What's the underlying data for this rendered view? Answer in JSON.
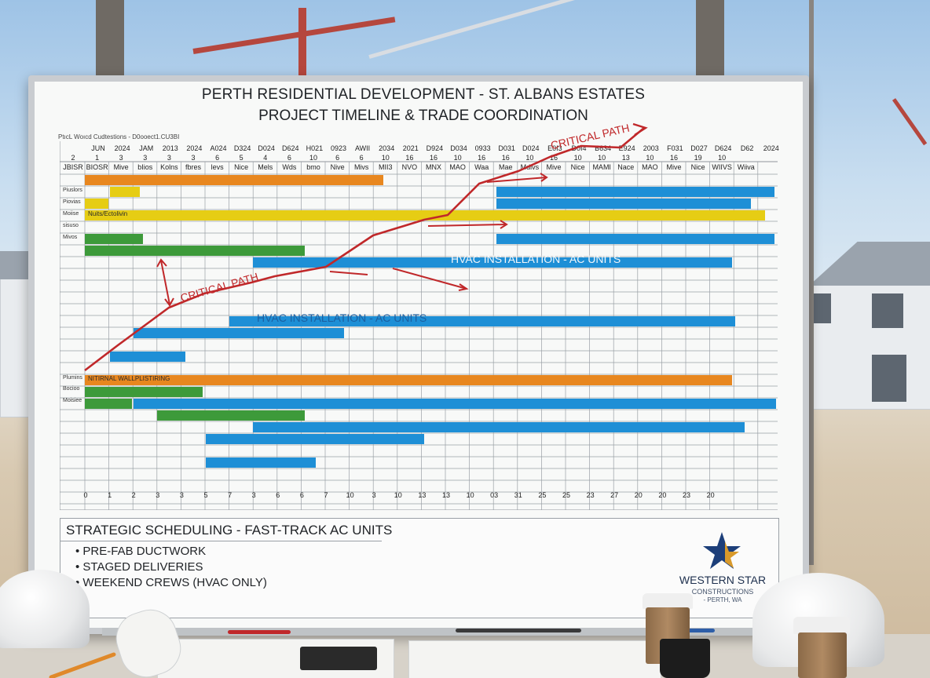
{
  "board": {
    "title_line1": "PERTH RESIDENTIAL DEVELOPMENT - ST. ALBANS ESTATES",
    "title_line2": "PROJECT TIMELINE & TRADE COORDINATION",
    "subheading": "PtıcL Woıcd Cudtestions - D0ooect1.CU3BI"
  },
  "gantt": {
    "months": [
      "JUN",
      "2024",
      "JAM",
      "2013",
      "2024",
      "A024",
      "D324",
      "D024",
      "D624",
      "H021",
      "0923",
      "AWII",
      "2034",
      "2021",
      "D924",
      "D034",
      "0933",
      "D031",
      "D024",
      "E0I3",
      "D0I4",
      "B634",
      "E924",
      "2003",
      "F031",
      "D027",
      "D624",
      "D62",
      "2024"
    ],
    "weeks": [
      "2",
      "1",
      "3",
      "3",
      "3",
      "3",
      "6",
      "5",
      "4",
      "6",
      "10",
      "6",
      "6",
      "10",
      "16",
      "16",
      "10",
      "16",
      "16",
      "10",
      "16",
      "10",
      "10",
      "13",
      "10",
      "16",
      "19",
      "10"
    ],
    "trades": [
      "JBISR",
      "BIOSR",
      "Mive",
      "bIios",
      "Kolns",
      "fbres",
      "levs",
      "Nice",
      "Mels",
      "Wds",
      "bmo",
      "Nive",
      "Mivs",
      "MII3",
      "NVO",
      "MNX",
      "MAO",
      "Waa",
      "Mae",
      "Mdlvs",
      "Mive",
      "Nice",
      "MAMI",
      "Nace",
      "MAO",
      "Mive",
      "Nice",
      "WIIVS",
      "Wiiva"
    ],
    "footer_ticks": [
      "0",
      "1",
      "2",
      "3",
      "3",
      "5",
      "7",
      "3",
      "6",
      "6",
      "7",
      "10",
      "3",
      "10",
      "13",
      "13",
      "10",
      "03",
      "31",
      "25",
      "25",
      "23",
      "27",
      "20",
      "20",
      "23",
      "20"
    ],
    "row_labels": [
      "Piuslors",
      "Piovias",
      "Moiise",
      "sisuso",
      "Mivos",
      "Plumins",
      "Bocioo",
      "Moisiee"
    ],
    "bar_texts": [
      "Nuits/Ectolivin",
      "NITIRNAL WALLPLISTIRING"
    ],
    "hvac_label": "HVAC INSTALLATION - AC UNITS",
    "critical_path_label": "CRITICAL PATH"
  },
  "panel": {
    "title": "STRATEGIC SCHEDULING - FAST-TRACK AC UNITS",
    "bullets": [
      "PRE-FAB DUCTWORK",
      "STAGED DELIVERIES",
      "WEEKEND CREWS (HVAC ONLY)"
    ]
  },
  "logo": {
    "name": "WESTERN STAR",
    "line2": "CONSTRUCTIONS",
    "line3": "- PERTH, WA"
  },
  "colors": {
    "orange": "#e8871f",
    "yellow": "#e6cd14",
    "green": "#3d9a3a",
    "blue": "#1e8fd6",
    "critical_red": "#c0282a",
    "logo_navy": "#1d3f7a",
    "logo_gold": "#d99a2b"
  }
}
